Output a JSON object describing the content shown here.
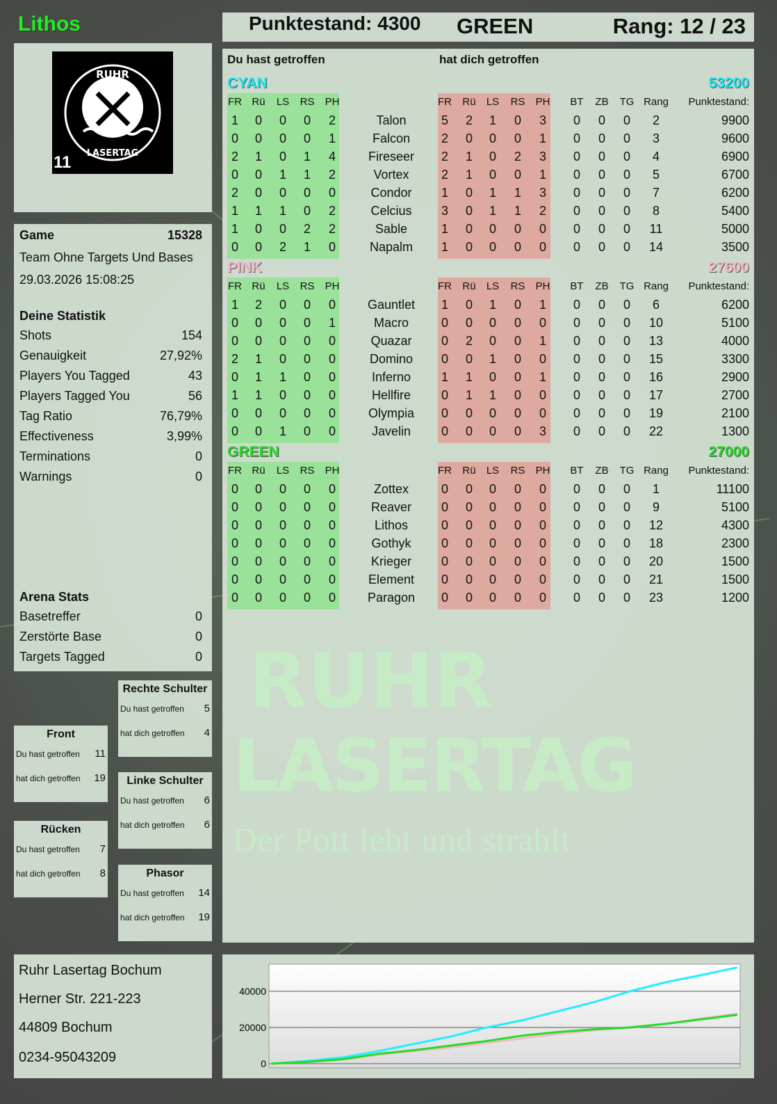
{
  "player_name": "Lithos",
  "header": {
    "score_label": "Punktestand: 4300",
    "team": "GREEN",
    "rank_label": "Rang: 12 / 23"
  },
  "logo": {
    "text": "RUHR LASERTAG",
    "number": "11"
  },
  "game": {
    "label": "Game",
    "id": "15328",
    "mode": "Team Ohne Targets Und Bases",
    "datetime": "29.03.2026 15:08:25"
  },
  "stats": {
    "title": "Deine Statistik",
    "items": [
      {
        "label": "Shots",
        "value": "154"
      },
      {
        "label": "Genauigkeit",
        "value": "27,92%"
      },
      {
        "label": "Players You Tagged",
        "value": "43"
      },
      {
        "label": "Players Tagged You",
        "value": "56"
      },
      {
        "label": "Tag Ratio",
        "value": "76,79%"
      },
      {
        "label": "Effectiveness",
        "value": "3,99%"
      },
      {
        "label": "Terminations",
        "value": "0"
      },
      {
        "label": "Warnings",
        "value": "0"
      }
    ]
  },
  "arena": {
    "title": "Arena Stats",
    "items": [
      {
        "label": "Basetreffer",
        "value": "0"
      },
      {
        "label": "Zerstörte Base",
        "value": "0"
      },
      {
        "label": "Targets Tagged",
        "value": "0"
      }
    ]
  },
  "zones": [
    {
      "title": "Rechte Schulter",
      "hit_label": "Du hast getroffen",
      "hit": "5",
      "got_label": "hat dich getroffen",
      "got": "4"
    },
    {
      "title": "Front",
      "hit_label": "Du hast getroffen",
      "hit": "11",
      "got_label": "hat dich getroffen",
      "got": "19"
    },
    {
      "title": "Linke Schulter",
      "hit_label": "Du hast getroffen",
      "hit": "6",
      "got_label": "hat dich getroffen",
      "got": "6"
    },
    {
      "title": "Rücken",
      "hit_label": "Du hast getroffen",
      "hit": "7",
      "got_label": "hat dich getroffen",
      "got": "8"
    },
    {
      "title": "Phasor",
      "hit_label": "Du hast getroffen",
      "hit": "14",
      "got_label": "hat dich getroffen",
      "got": "19"
    }
  ],
  "address": [
    "Ruhr Lasertag Bochum",
    "Herner Str. 221-223",
    "44809 Bochum",
    "0234-95043209"
  ],
  "watermark": {
    "line1": "RUHR",
    "line2": "LASERTAG",
    "tagline": "Der Pott lebt und strahlt"
  },
  "table": {
    "left_title": "Du hast getroffen",
    "right_title": "hat dich getroffen",
    "zone_headers": [
      "FR",
      "Rü",
      "LS",
      "RS",
      "PH"
    ],
    "extra_headers": [
      "BT",
      "ZB",
      "TG",
      "Rang",
      "Punktestand:"
    ],
    "teams": [
      {
        "name": "CYAN",
        "color": "#19e6f0",
        "score": "53200",
        "players": [
          [
            "Talon",
            [
              1,
              0,
              0,
              0,
              2
            ],
            [
              5,
              2,
              1,
              0,
              3
            ],
            0,
            0,
            0,
            2,
            9900
          ],
          [
            "Falcon",
            [
              0,
              0,
              0,
              0,
              1
            ],
            [
              2,
              0,
              0,
              0,
              1
            ],
            0,
            0,
            0,
            3,
            9600
          ],
          [
            "Fireseer",
            [
              2,
              1,
              0,
              1,
              4
            ],
            [
              2,
              1,
              0,
              2,
              3
            ],
            0,
            0,
            0,
            4,
            6900
          ],
          [
            "Vortex",
            [
              0,
              0,
              1,
              1,
              2
            ],
            [
              2,
              1,
              0,
              0,
              1
            ],
            0,
            0,
            0,
            5,
            6700
          ],
          [
            "Condor",
            [
              2,
              0,
              0,
              0,
              0
            ],
            [
              1,
              0,
              1,
              1,
              3
            ],
            0,
            0,
            0,
            7,
            6200
          ],
          [
            "Celcius",
            [
              1,
              1,
              1,
              0,
              2
            ],
            [
              3,
              0,
              1,
              1,
              2
            ],
            0,
            0,
            0,
            8,
            5400
          ],
          [
            "Sable",
            [
              1,
              0,
              0,
              2,
              2
            ],
            [
              1,
              0,
              0,
              0,
              0
            ],
            0,
            0,
            0,
            11,
            5000
          ],
          [
            "Napalm",
            [
              0,
              0,
              2,
              1,
              0
            ],
            [
              1,
              0,
              0,
              0,
              0
            ],
            0,
            0,
            0,
            14,
            3500
          ]
        ]
      },
      {
        "name": "PINK",
        "color": "#f4b8c8",
        "score": "27600",
        "players": [
          [
            "Gauntlet",
            [
              1,
              2,
              0,
              0,
              0
            ],
            [
              1,
              0,
              1,
              0,
              1
            ],
            0,
            0,
            0,
            6,
            6200
          ],
          [
            "Macro",
            [
              0,
              0,
              0,
              0,
              1
            ],
            [
              0,
              0,
              0,
              0,
              0
            ],
            0,
            0,
            0,
            10,
            5100
          ],
          [
            "Quazar",
            [
              0,
              0,
              0,
              0,
              0
            ],
            [
              0,
              2,
              0,
              0,
              1
            ],
            0,
            0,
            0,
            13,
            4000
          ],
          [
            "Domino",
            [
              2,
              1,
              0,
              0,
              0
            ],
            [
              0,
              0,
              1,
              0,
              0
            ],
            0,
            0,
            0,
            15,
            3300
          ],
          [
            "Inferno",
            [
              0,
              1,
              1,
              0,
              0
            ],
            [
              1,
              1,
              0,
              0,
              1
            ],
            0,
            0,
            0,
            16,
            2900
          ],
          [
            "Hellfire",
            [
              1,
              1,
              0,
              0,
              0
            ],
            [
              0,
              1,
              1,
              0,
              0
            ],
            0,
            0,
            0,
            17,
            2700
          ],
          [
            "Olympia",
            [
              0,
              0,
              0,
              0,
              0
            ],
            [
              0,
              0,
              0,
              0,
              0
            ],
            0,
            0,
            0,
            19,
            2100
          ],
          [
            "Javelin",
            [
              0,
              0,
              1,
              0,
              0
            ],
            [
              0,
              0,
              0,
              0,
              3
            ],
            0,
            0,
            0,
            22,
            1300
          ]
        ]
      },
      {
        "name": "GREEN",
        "color": "#22dd22",
        "score": "27000",
        "players": [
          [
            "Zottex",
            [
              0,
              0,
              0,
              0,
              0
            ],
            [
              0,
              0,
              0,
              0,
              0
            ],
            0,
            0,
            0,
            1,
            11100
          ],
          [
            "Reaver",
            [
              0,
              0,
              0,
              0,
              0
            ],
            [
              0,
              0,
              0,
              0,
              0
            ],
            0,
            0,
            0,
            9,
            5100
          ],
          [
            "Lithos",
            [
              0,
              0,
              0,
              0,
              0
            ],
            [
              0,
              0,
              0,
              0,
              0
            ],
            0,
            0,
            0,
            12,
            4300
          ],
          [
            "Gothyk",
            [
              0,
              0,
              0,
              0,
              0
            ],
            [
              0,
              0,
              0,
              0,
              0
            ],
            0,
            0,
            0,
            18,
            2300
          ],
          [
            "Krieger",
            [
              0,
              0,
              0,
              0,
              0
            ],
            [
              0,
              0,
              0,
              0,
              0
            ],
            0,
            0,
            0,
            20,
            1500
          ],
          [
            "Element",
            [
              0,
              0,
              0,
              0,
              0
            ],
            [
              0,
              0,
              0,
              0,
              0
            ],
            0,
            0,
            0,
            21,
            1500
          ],
          [
            "Paragon",
            [
              0,
              0,
              0,
              0,
              0
            ],
            [
              0,
              0,
              0,
              0,
              0
            ],
            0,
            0,
            0,
            23,
            1200
          ]
        ]
      }
    ]
  },
  "chart_data": {
    "type": "line",
    "title": "",
    "xlabel": "",
    "ylabel": "",
    "ylim": [
      0,
      55000
    ],
    "yticks": [
      0,
      20000,
      40000
    ],
    "grid": true,
    "x": [
      0,
      1,
      2,
      3,
      4,
      5,
      6,
      7,
      8,
      9,
      10,
      11,
      12,
      13
    ],
    "series": [
      {
        "color": "#22eeff",
        "values": [
          0,
          1500,
          3500,
          7000,
          11000,
          15000,
          20000,
          24000,
          29000,
          34000,
          40000,
          45000,
          49000,
          53200
        ]
      },
      {
        "color": "#f4b8c8",
        "values": [
          0,
          900,
          2300,
          5000,
          7000,
          9000,
          11500,
          14000,
          16500,
          18500,
          20000,
          22000,
          25000,
          27600
        ]
      },
      {
        "color": "#22dd22",
        "values": [
          0,
          1000,
          2500,
          5500,
          7500,
          10000,
          12500,
          15500,
          17500,
          19000,
          20000,
          22000,
          24500,
          27000
        ]
      }
    ]
  }
}
